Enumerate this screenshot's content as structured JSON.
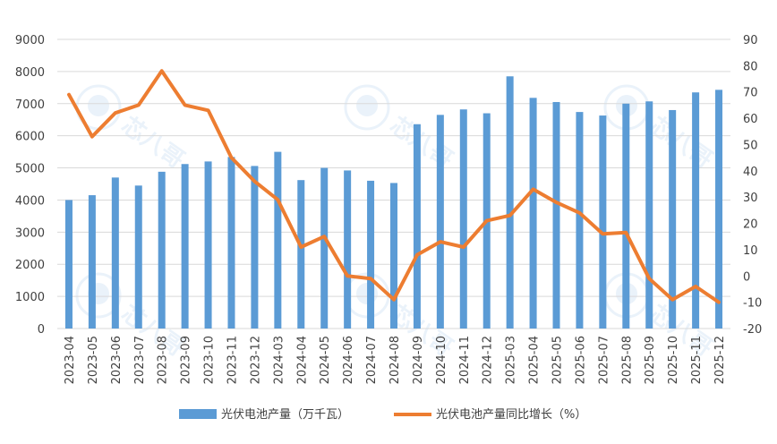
{
  "chart_data": {
    "type": "bar+line",
    "title": "",
    "categories": [
      "2023-04",
      "2023-05",
      "2023-06",
      "2023-07",
      "2023-08",
      "2023-09",
      "2023-10",
      "2023-11",
      "2023-12",
      "2024-03",
      "2024-04",
      "2024-05",
      "2024-06",
      "2024-07",
      "2024-08",
      "2024-09",
      "2024-10",
      "2024-11",
      "2024-12",
      "2025-03",
      "2025-04",
      "2025-05",
      "2025-06",
      "2025-07",
      "2025-08",
      "2025-09",
      "2025-10",
      "2025-11",
      "2025-12"
    ],
    "series": [
      {
        "name": "光伏电池产量（万千瓦）",
        "type": "bar",
        "axis": "left",
        "color": "#5B9BD5",
        "values": [
          4000,
          4150,
          4700,
          4450,
          4880,
          5120,
          5200,
          5340,
          5060,
          5500,
          4620,
          5000,
          4920,
          4600,
          4530,
          6360,
          6650,
          6820,
          6700,
          7850,
          7180,
          7050,
          6740,
          6630,
          7000,
          7070,
          6800,
          7350,
          7430
        ]
      },
      {
        "name": "光伏电池产量同比增长（%）",
        "type": "line",
        "axis": "right",
        "color": "#ED7D31",
        "values": [
          69,
          53,
          62,
          65,
          78,
          65,
          63,
          45,
          36,
          29,
          11,
          15,
          0,
          -1,
          -9,
          8,
          13,
          11,
          21,
          23,
          33,
          28,
          24,
          16,
          16.5,
          -1,
          -9,
          -4,
          -10
        ]
      }
    ],
    "left_axis": {
      "min": 0,
      "max": 9000,
      "ticks": [
        "0",
        "1000",
        "2000",
        "3000",
        "4000",
        "5000",
        "6000",
        "7000",
        "8000",
        "9000"
      ]
    },
    "right_axis": {
      "min": -20,
      "max": 90,
      "ticks": [
        "-20",
        "-10",
        "0",
        "10",
        "20",
        "30",
        "40",
        "50",
        "60",
        "70",
        "80",
        "90"
      ]
    },
    "grid": true,
    "legend_position": "bottom"
  },
  "watermark": {
    "text": "芯八哥"
  }
}
